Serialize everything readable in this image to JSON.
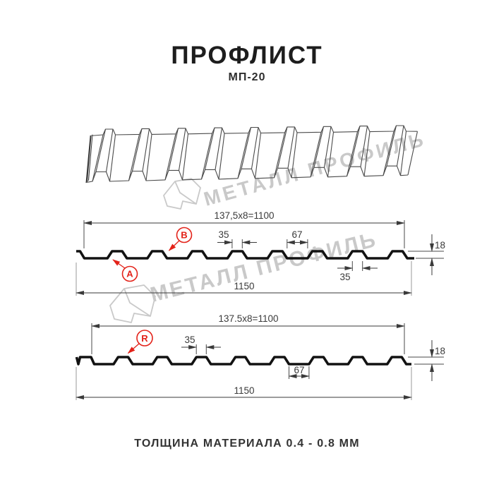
{
  "header": {
    "title": "ПРОФЛИСТ",
    "subtitle": "МП-20"
  },
  "watermark": {
    "text": "МЕТАЛЛ ПРОФИЛЬ",
    "logo": "metall-profil-logo",
    "color": "#c9c9c9"
  },
  "sections": {
    "front": {
      "name": "profile-section-AB",
      "width_formula": "137,5x8=1100",
      "crest_top_width": "35",
      "groove_width": "67",
      "rib_height": "18",
      "underside_crest_width": "35",
      "total_width": "1150",
      "label_a": "A",
      "label_b": "B"
    },
    "reverse": {
      "name": "profile-section-R",
      "width_formula": "137.5x8=1100",
      "crest_top_width": "35",
      "groove_width": "67",
      "rib_height": "18",
      "total_width": "1150",
      "label_r": "R"
    }
  },
  "footer": {
    "note": "ТОЛЩИНА МАТЕРИАЛА 0.4 - 0.8 ММ"
  },
  "colors": {
    "accent_red": "#e32219",
    "line_black": "#121212",
    "dim_gray": "#3a3a3a",
    "watermark_gray": "#c9c9c9",
    "background": "#ffffff"
  }
}
